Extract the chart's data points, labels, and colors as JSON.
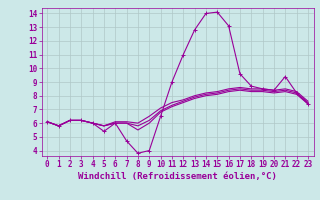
{
  "xlabel": "Windchill (Refroidissement éolien,°C)",
  "background_color": "#cce8e8",
  "line_color": "#990099",
  "grid_color": "#b0c8c8",
  "xlim": [
    -0.5,
    23.5
  ],
  "ylim": [
    3.6,
    14.4
  ],
  "yticks": [
    4,
    5,
    6,
    7,
    8,
    9,
    10,
    11,
    12,
    13,
    14
  ],
  "xticks": [
    0,
    1,
    2,
    3,
    4,
    5,
    6,
    7,
    8,
    9,
    10,
    11,
    12,
    13,
    14,
    15,
    16,
    17,
    18,
    19,
    20,
    21,
    22,
    23
  ],
  "series": [
    [
      6.1,
      5.8,
      6.2,
      6.2,
      6.0,
      5.4,
      6.0,
      4.7,
      3.8,
      4.0,
      6.5,
      9.0,
      11.0,
      12.8,
      14.0,
      14.1,
      13.1,
      9.6,
      8.7,
      8.5,
      8.4,
      9.4,
      8.2,
      7.4
    ],
    [
      6.1,
      5.8,
      6.2,
      6.2,
      6.0,
      5.8,
      6.0,
      6.0,
      5.5,
      6.0,
      6.8,
      7.2,
      7.5,
      7.8,
      8.0,
      8.1,
      8.3,
      8.4,
      8.3,
      8.3,
      8.2,
      8.3,
      8.1,
      7.4
    ],
    [
      6.1,
      5.8,
      6.2,
      6.2,
      6.0,
      5.8,
      6.0,
      6.0,
      5.8,
      6.2,
      6.9,
      7.3,
      7.6,
      7.9,
      8.1,
      8.2,
      8.4,
      8.5,
      8.4,
      8.4,
      8.3,
      8.4,
      8.2,
      7.5
    ],
    [
      6.1,
      5.8,
      6.2,
      6.2,
      6.0,
      5.8,
      6.1,
      6.1,
      6.0,
      6.5,
      7.1,
      7.5,
      7.7,
      8.0,
      8.2,
      8.3,
      8.5,
      8.6,
      8.5,
      8.5,
      8.4,
      8.5,
      8.3,
      7.6
    ]
  ],
  "line_width": 0.8,
  "tick_fontsize": 5.5,
  "label_fontsize": 6.5
}
